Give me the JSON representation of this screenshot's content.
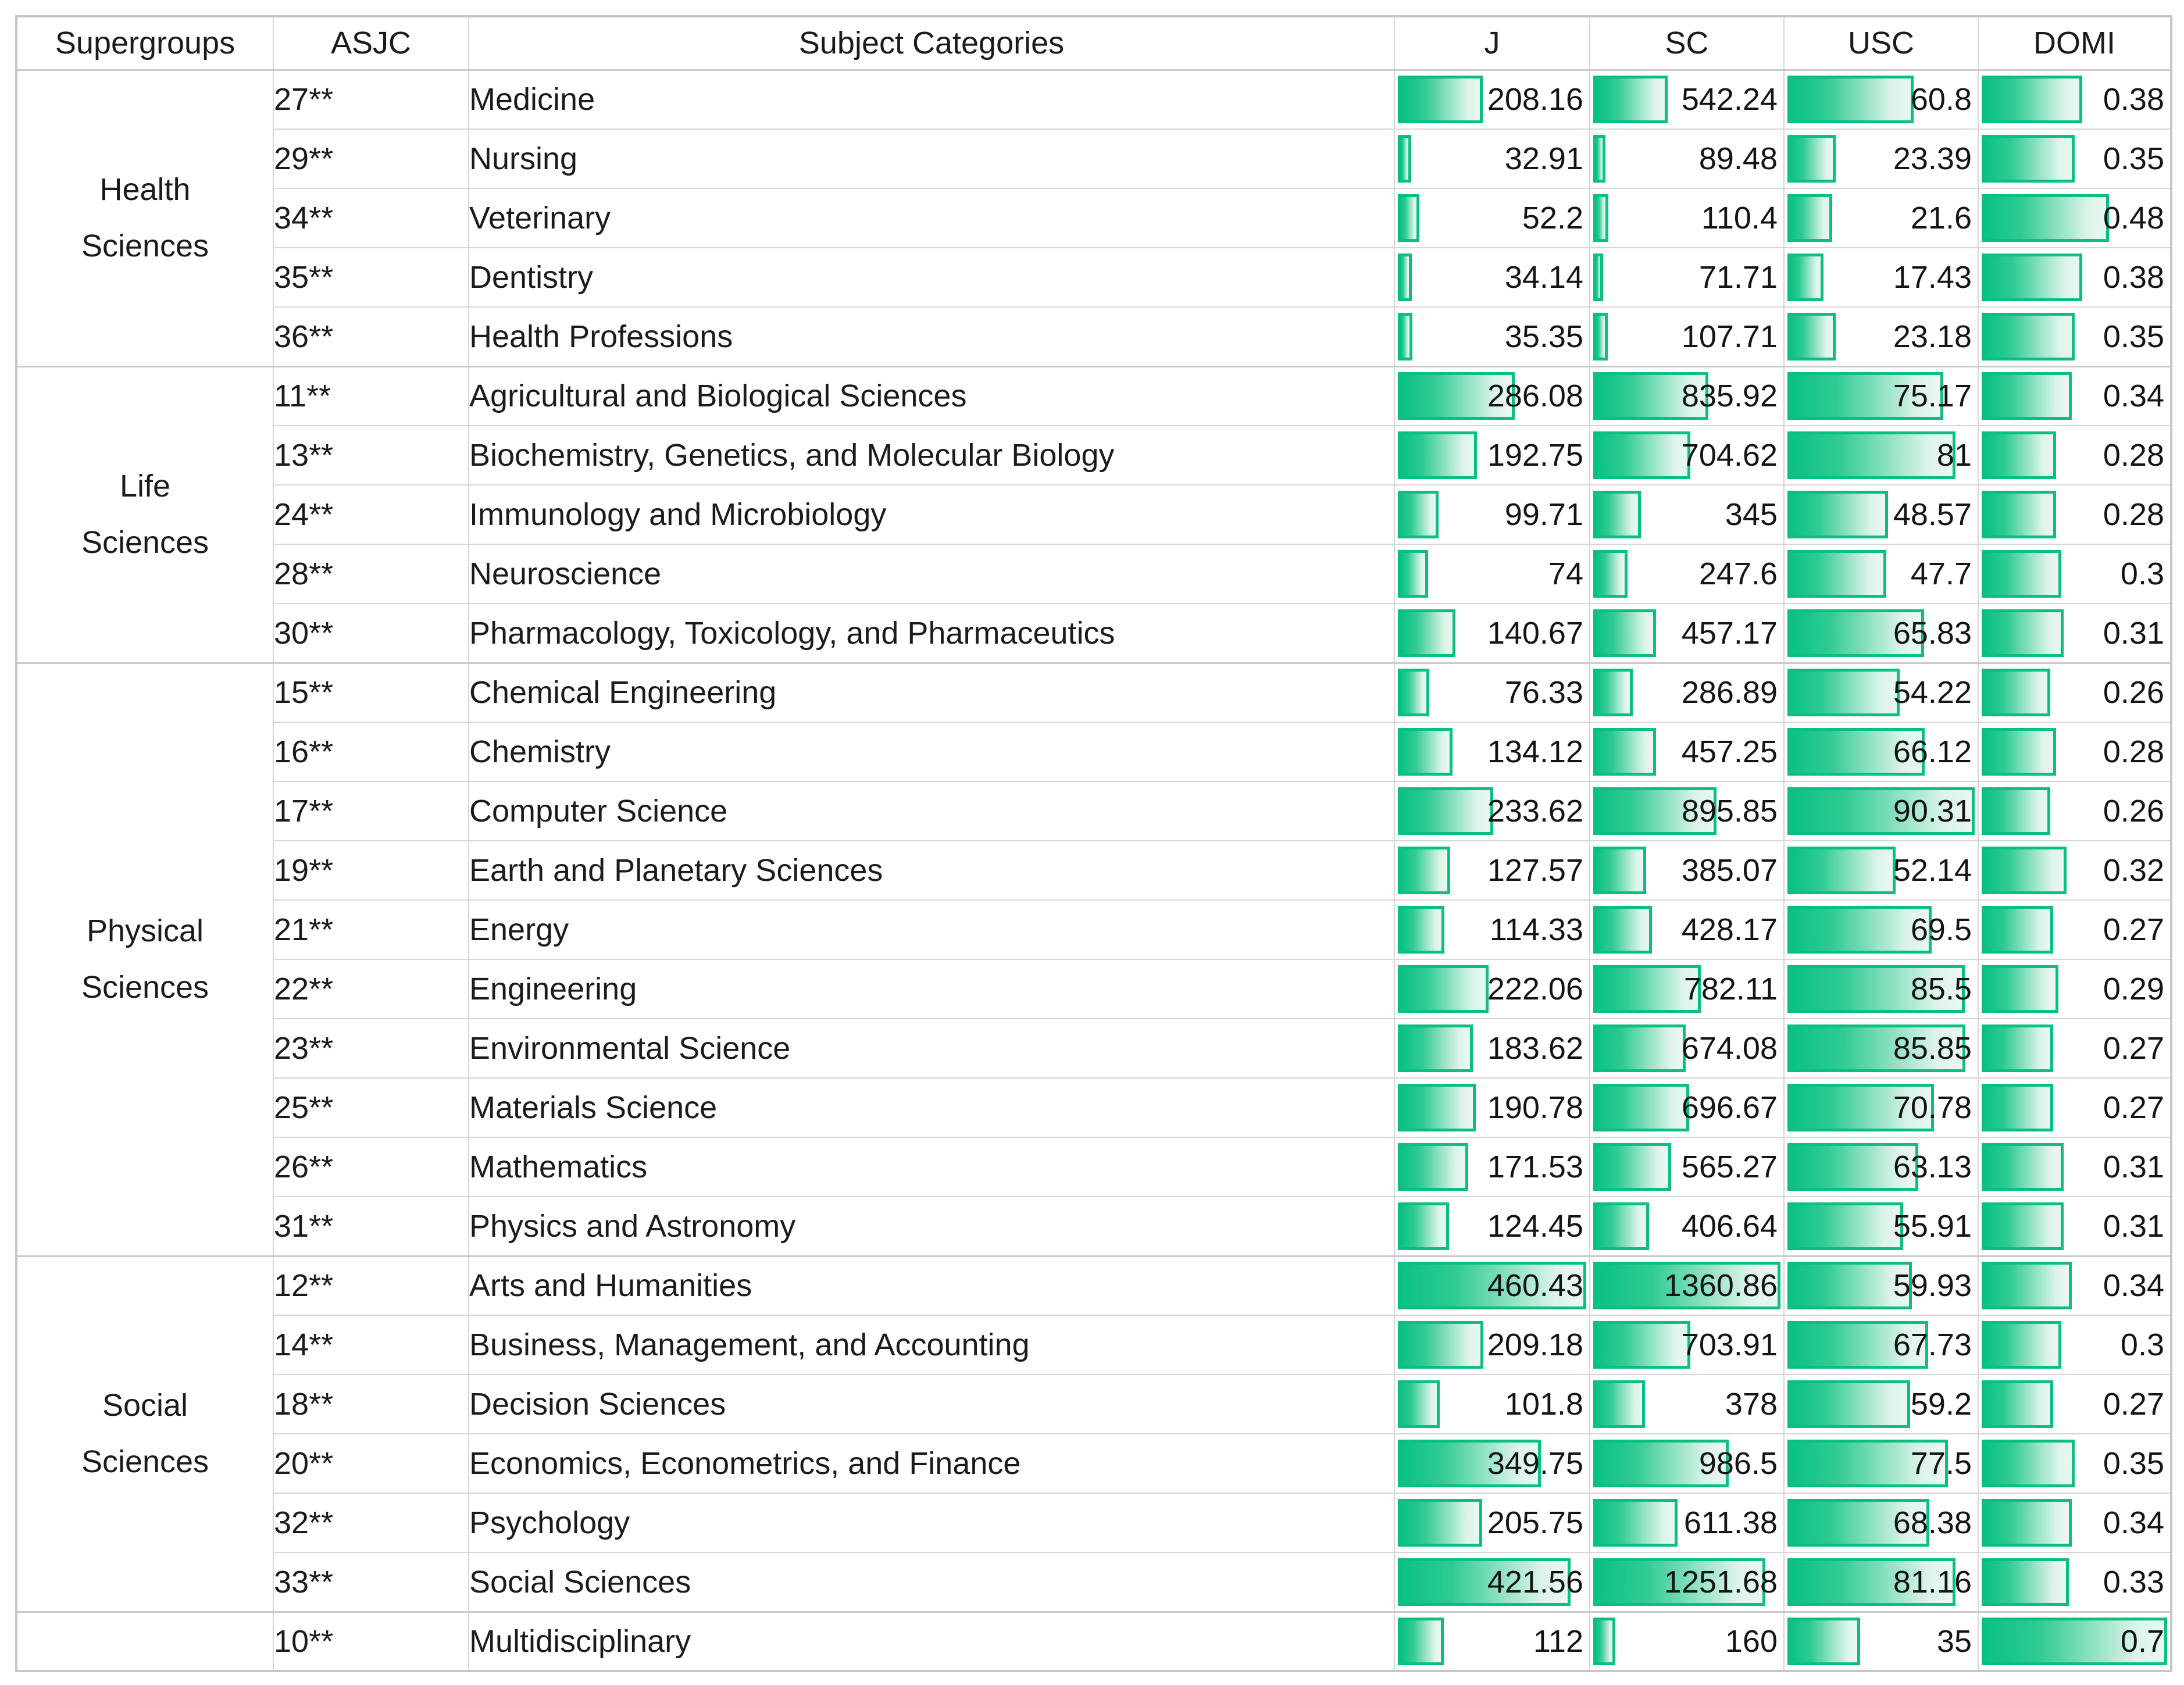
{
  "colors": {
    "background": "#ffffff",
    "grid_line": "#d6d6d6",
    "outer_border": "#c6c6c6",
    "bar_border": "#0abf82",
    "bar_fill_left": "#0ac183",
    "bar_fill_right": "#e9f8f1",
    "text": "#1b1b1b"
  },
  "chart_data": {
    "type": "table",
    "columns": [
      "Supergroups",
      "ASJC",
      "Subject Categories",
      "J",
      "SC",
      "USC",
      "DOMI"
    ],
    "column_maxima": {
      "J": 460.43,
      "SC": 1360.86,
      "USC": 90.31,
      "DOMI": 0.7
    },
    "bar_scaling": "bar width = value / column maximum",
    "supergroups": [
      {
        "name": "Health Sciences",
        "rows": [
          {
            "asjc": "27**",
            "category": "Medicine",
            "J": 208.16,
            "SC": 542.24,
            "USC": 60.8,
            "DOMI": 0.38
          },
          {
            "asjc": "29**",
            "category": "Nursing",
            "J": 32.91,
            "SC": 89.48,
            "USC": 23.39,
            "DOMI": 0.35
          },
          {
            "asjc": "34**",
            "category": "Veterinary",
            "J": 52.2,
            "SC": 110.4,
            "USC": 21.6,
            "DOMI": 0.48
          },
          {
            "asjc": "35**",
            "category": "Dentistry",
            "J": 34.14,
            "SC": 71.71,
            "USC": 17.43,
            "DOMI": 0.38
          },
          {
            "asjc": "36**",
            "category": "Health Professions",
            "J": 35.35,
            "SC": 107.71,
            "USC": 23.18,
            "DOMI": 0.35
          }
        ]
      },
      {
        "name": "Life Sciences",
        "rows": [
          {
            "asjc": "11**",
            "category": "Agricultural and Biological Sciences",
            "J": 286.08,
            "SC": 835.92,
            "USC": 75.17,
            "DOMI": 0.34
          },
          {
            "asjc": "13**",
            "category": "Biochemistry, Genetics, and Molecular Biology",
            "J": 192.75,
            "SC": 704.62,
            "USC": 81,
            "DOMI": 0.28
          },
          {
            "asjc": "24**",
            "category": "Immunology and Microbiology",
            "J": 99.71,
            "SC": 345,
            "USC": 48.57,
            "DOMI": 0.28
          },
          {
            "asjc": "28**",
            "category": "Neuroscience",
            "J": 74,
            "SC": 247.6,
            "USC": 47.7,
            "DOMI": 0.3
          },
          {
            "asjc": "30**",
            "category": "Pharmacology, Toxicology, and Pharmaceutics",
            "J": 140.67,
            "SC": 457.17,
            "USC": 65.83,
            "DOMI": 0.31
          }
        ]
      },
      {
        "name": "Physical Sciences",
        "rows": [
          {
            "asjc": "15**",
            "category": "Chemical Engineering",
            "J": 76.33,
            "SC": 286.89,
            "USC": 54.22,
            "DOMI": 0.26
          },
          {
            "asjc": "16**",
            "category": "Chemistry",
            "J": 134.12,
            "SC": 457.25,
            "USC": 66.12,
            "DOMI": 0.28
          },
          {
            "asjc": "17**",
            "category": "Computer Science",
            "J": 233.62,
            "SC": 895.85,
            "USC": 90.31,
            "DOMI": 0.26
          },
          {
            "asjc": "19**",
            "category": "Earth and Planetary Sciences",
            "J": 127.57,
            "SC": 385.07,
            "USC": 52.14,
            "DOMI": 0.32
          },
          {
            "asjc": "21**",
            "category": "Energy",
            "J": 114.33,
            "SC": 428.17,
            "USC": 69.5,
            "DOMI": 0.27
          },
          {
            "asjc": "22**",
            "category": "Engineering",
            "J": 222.06,
            "SC": 782.11,
            "USC": 85.5,
            "DOMI": 0.29
          },
          {
            "asjc": "23**",
            "category": "Environmental Science",
            "J": 183.62,
            "SC": 674.08,
            "USC": 85.85,
            "DOMI": 0.27
          },
          {
            "asjc": "25**",
            "category": "Materials Science",
            "J": 190.78,
            "SC": 696.67,
            "USC": 70.78,
            "DOMI": 0.27
          },
          {
            "asjc": "26**",
            "category": "Mathematics",
            "J": 171.53,
            "SC": 565.27,
            "USC": 63.13,
            "DOMI": 0.31
          },
          {
            "asjc": "31**",
            "category": "Physics and Astronomy",
            "J": 124.45,
            "SC": 406.64,
            "USC": 55.91,
            "DOMI": 0.31
          }
        ]
      },
      {
        "name": "Social Sciences",
        "rows": [
          {
            "asjc": "12**",
            "category": "Arts and Humanities",
            "J": 460.43,
            "SC": 1360.86,
            "USC": 59.93,
            "DOMI": 0.34
          },
          {
            "asjc": "14**",
            "category": "Business, Management, and Accounting",
            "J": 209.18,
            "SC": 703.91,
            "USC": 67.73,
            "DOMI": 0.3
          },
          {
            "asjc": "18**",
            "category": "Decision Sciences",
            "J": 101.8,
            "SC": 378,
            "USC": 59.2,
            "DOMI": 0.27
          },
          {
            "asjc": "20**",
            "category": "Economics, Econometrics, and Finance",
            "J": 349.75,
            "SC": 986.5,
            "USC": 77.5,
            "DOMI": 0.35
          },
          {
            "asjc": "32**",
            "category": "Psychology",
            "J": 205.75,
            "SC": 611.38,
            "USC": 68.38,
            "DOMI": 0.34
          },
          {
            "asjc": "33**",
            "category": "Social Sciences",
            "J": 421.56,
            "SC": 1251.68,
            "USC": 81.16,
            "DOMI": 0.33
          }
        ]
      },
      {
        "name": "",
        "rows": [
          {
            "asjc": "10**",
            "category": "Multidisciplinary",
            "J": 112,
            "SC": 160,
            "USC": 35,
            "DOMI": 0.7
          }
        ]
      }
    ]
  }
}
